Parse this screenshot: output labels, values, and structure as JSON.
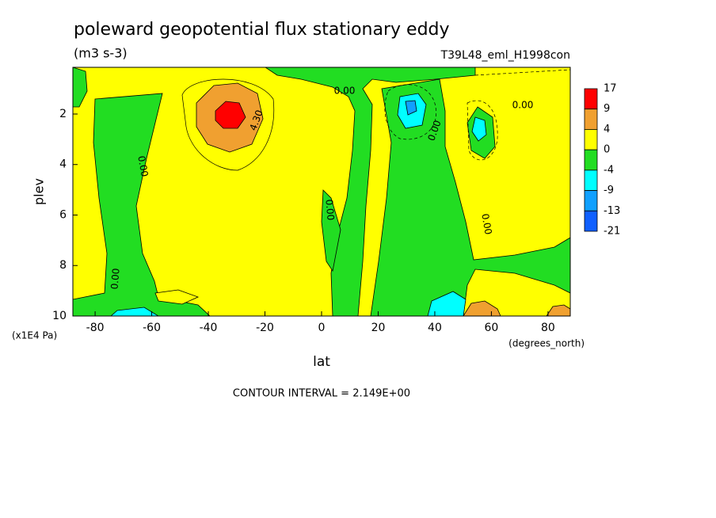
{
  "chart_data": {
    "type": "contour",
    "title": "poleward geopotential flux stationary eddy",
    "subtitle": "(m3 s-3)",
    "dataset": "T39L48_eml_H1998con",
    "xlabel": "lat",
    "xunits": "(degrees_north)",
    "ylabel": "plev",
    "yunits": "(x1E4 Pa)",
    "xlim": [
      -87.86,
      87.86
    ],
    "xticks": [
      -80,
      -60,
      -40,
      -20,
      0,
      20,
      40,
      60,
      80
    ],
    "ylim": [
      10,
      0.15
    ],
    "yticks": [
      2,
      4,
      6,
      8,
      10
    ],
    "levels": [
      17,
      9,
      4,
      0,
      -4,
      -9,
      -13,
      -21
    ],
    "colors": [
      "#ff0000",
      "#f0a030",
      "#ffff00",
      "#22dd22",
      "#00ffff",
      "#10a0ff",
      "#1060ff"
    ],
    "contour_labels": [
      {
        "value": 0,
        "label": "0.00"
      },
      {
        "value": 0,
        "label": "0.00"
      },
      {
        "value": 0,
        "label": "0.00"
      },
      {
        "value": 0,
        "label": "0.00"
      },
      {
        "value": 0,
        "label": "0.00"
      },
      {
        "value": 0,
        "label": "0.00"
      },
      {
        "value": 0,
        "label": "0.00"
      },
      {
        "value": 4.3,
        "label": "4.30"
      }
    ],
    "note": "CONTOUR INTERVAL = 2.149E+00"
  }
}
